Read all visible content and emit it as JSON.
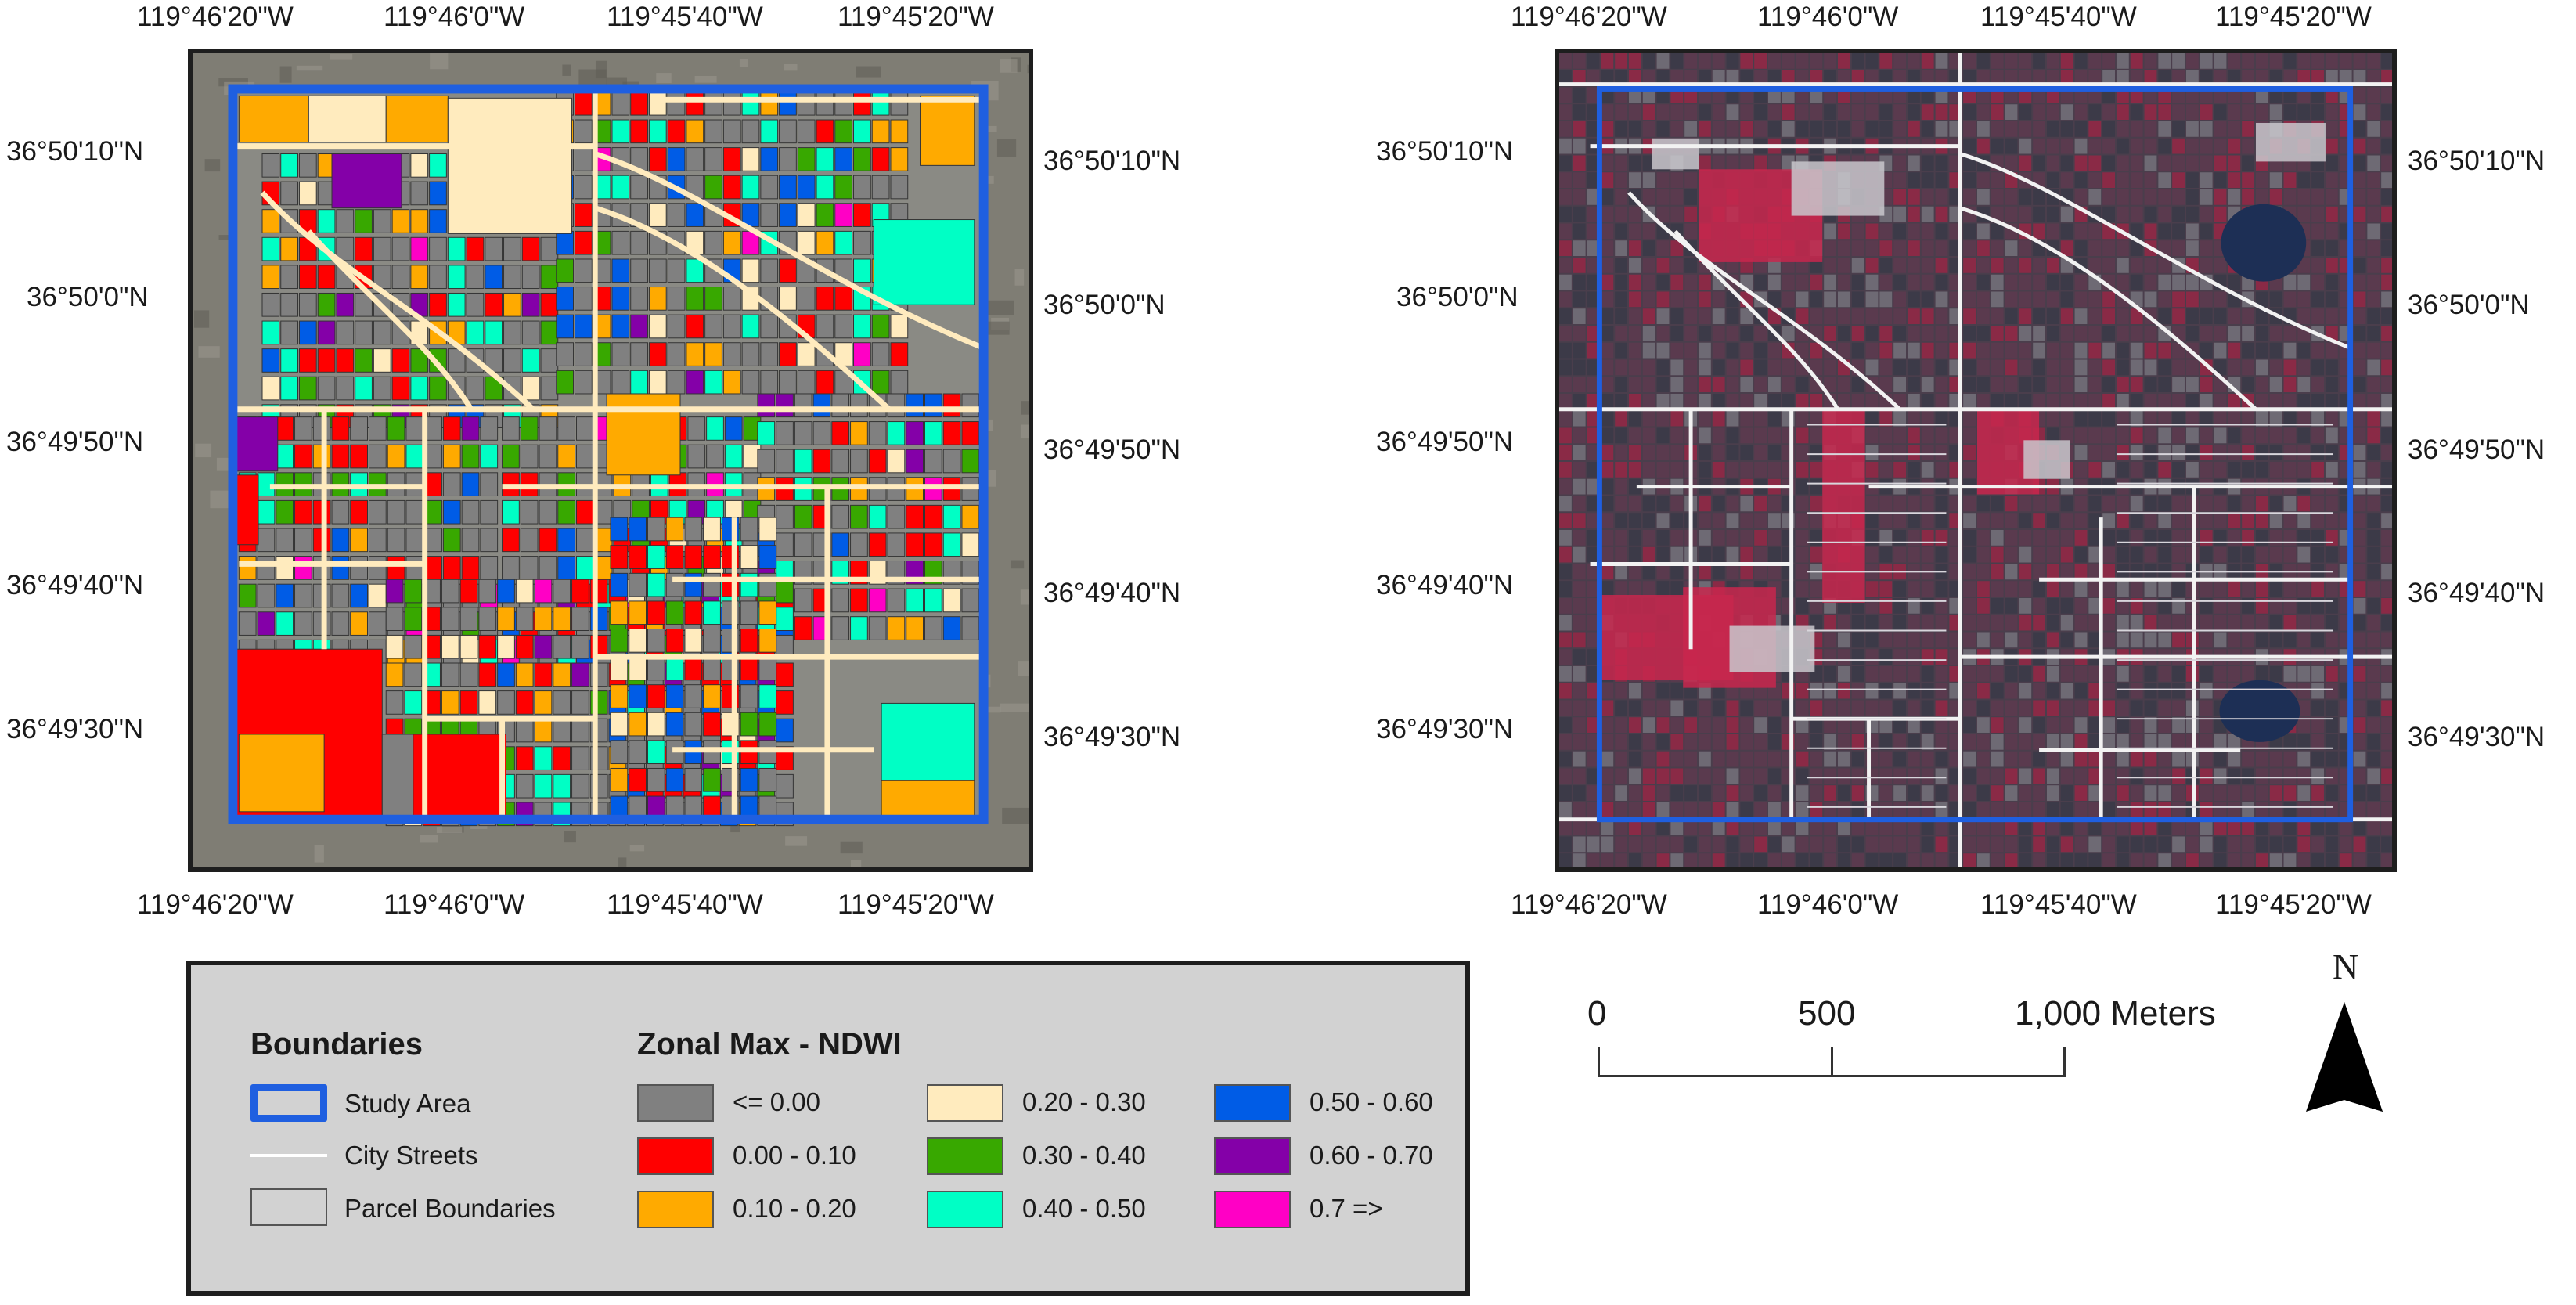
{
  "left_map": {
    "top_ticks": [
      "119°46'20\"W",
      "119°46'0\"W",
      "119°45'40\"W",
      "119°45'20\"W"
    ],
    "bottom_ticks": [
      "119°46'20\"W",
      "119°46'0\"W",
      "119°45'40\"W",
      "119°45'20\"W"
    ],
    "left_ticks": [
      "36°50'10\"N",
      "36°50'0\"N",
      "36°49'50\"N",
      "36°49'40\"N",
      "36°49'30\"N"
    ],
    "right_ticks": [
      "36°50'10\"N",
      "36°50'0\"N",
      "36°49'50\"N",
      "36°49'40\"N",
      "36°49'30\"N"
    ]
  },
  "right_map": {
    "top_ticks": [
      "119°46'20\"W",
      "119°46'0\"W",
      "119°45'40\"W",
      "119°45'20\"W"
    ],
    "bottom_ticks": [
      "119°46'20\"W",
      "119°46'0\"W",
      "119°45'40\"W",
      "119°45'20\"W"
    ],
    "left_ticks": [
      "36°50'10\"N",
      "36°50'0\"N",
      "36°49'50\"N",
      "36°49'40\"N",
      "36°49'30\"N"
    ],
    "right_ticks": [
      "36°50'10\"N",
      "36°50'0\"N",
      "36°49'50\"N",
      "36°49'40\"N",
      "36°49'30\"N"
    ]
  },
  "legend": {
    "boundaries_title": "Boundaries",
    "study_area": "Study Area",
    "city_streets": "City Streets",
    "parcel_boundaries": "Parcel Boundaries",
    "zonal_title": "Zonal Max - NDWI",
    "classes": [
      {
        "label": "<= 0.00",
        "color": "#808080"
      },
      {
        "label": "0.00 - 0.10",
        "color": "#ff0000"
      },
      {
        "label": "0.10 - 0.20",
        "color": "#ffaa00"
      },
      {
        "label": "0.20 - 0.30",
        "color": "#ffebbe"
      },
      {
        "label": "0.30 - 0.40",
        "color": "#38a800"
      },
      {
        "label": "0.40 - 0.50",
        "color": "#00ffc5"
      },
      {
        "label": "0.50 - 0.60",
        "color": "#005ce6"
      },
      {
        "label": "0.60 - 0.70",
        "color": "#8400a8"
      },
      {
        "label": "0.7 =>",
        "color": "#ff00c5"
      }
    ]
  },
  "scale_bar": {
    "labels": [
      "0",
      "500",
      "1,000 Meters"
    ]
  },
  "north_arrow": {
    "label": "N"
  },
  "colors": {
    "study_area_outline": "#1f5fe0",
    "street": "#ffebbe",
    "street_rgb": "#f2f2f2",
    "frame": "#1e1e1e"
  }
}
